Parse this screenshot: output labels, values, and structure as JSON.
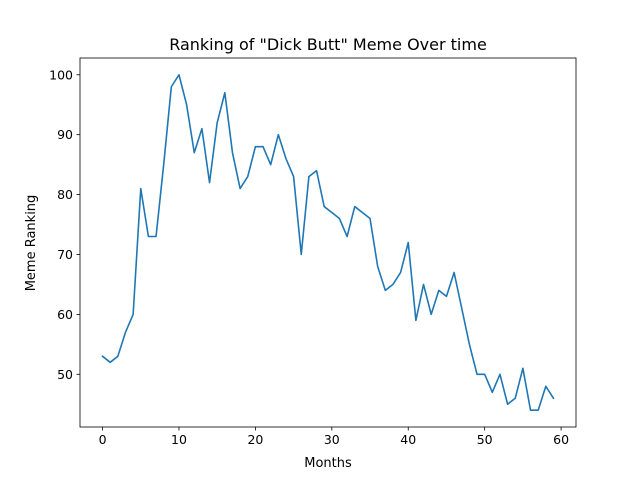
{
  "chart_data": {
    "type": "line",
    "title": "Ranking of \"Dick Butt\" Meme Over time",
    "xlabel": "Months",
    "ylabel": "Meme Ranking",
    "xlim": [
      -2.95,
      61.95
    ],
    "ylim": [
      41.2,
      102.8
    ],
    "xticks": [
      0,
      10,
      20,
      30,
      40,
      50,
      60
    ],
    "yticks": [
      50,
      60,
      70,
      80,
      90,
      100
    ],
    "grid": false,
    "series": [
      {
        "color": "#1f77b4",
        "x": [
          0,
          1,
          2,
          3,
          4,
          5,
          6,
          7,
          8,
          9,
          10,
          11,
          12,
          13,
          14,
          15,
          16,
          17,
          18,
          19,
          20,
          21,
          22,
          23,
          24,
          25,
          26,
          27,
          28,
          29,
          30,
          31,
          32,
          33,
          34,
          35,
          36,
          37,
          38,
          39,
          40,
          41,
          42,
          43,
          44,
          45,
          46,
          47,
          48,
          49,
          50,
          51,
          52,
          53,
          54,
          55,
          56,
          57,
          58,
          59
        ],
        "values": [
          53,
          52,
          53,
          57,
          60,
          81,
          73,
          73,
          85,
          98,
          100,
          95,
          87,
          91,
          82,
          92,
          97,
          87,
          81,
          83,
          88,
          88,
          85,
          90,
          86,
          83,
          70,
          83,
          84,
          78,
          77,
          76,
          73,
          78,
          77,
          76,
          68,
          64,
          65,
          67,
          72,
          59,
          65,
          60,
          64,
          63,
          67,
          61,
          55,
          50,
          50,
          47,
          50,
          45,
          46,
          51,
          44,
          44,
          48,
          46
        ]
      }
    ]
  }
}
